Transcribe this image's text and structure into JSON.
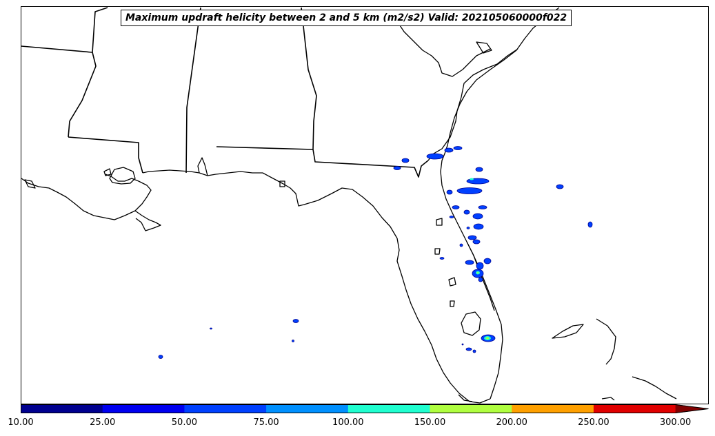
{
  "title": "Maximum updraft helicity between 2 and 5 km (m2/s2) Valid: 202105060000f022",
  "colorbar": {
    "ticks": [
      "10.00",
      "25.00",
      "50.00",
      "75.00",
      "100.00",
      "150.00",
      "200.00",
      "250.00",
      "300.00"
    ],
    "colors": [
      "#00008f",
      "#0000f0",
      "#0040ff",
      "#0090ff",
      "#20ffd0",
      "#b0ff40",
      "#ffa000",
      "#e00000",
      "#800000"
    ],
    "extend": "max"
  },
  "legend_placement": "bottom",
  "map": {
    "region": "Southeastern United States / Florida",
    "features": [
      "coastlines",
      "state borders"
    ]
  }
}
